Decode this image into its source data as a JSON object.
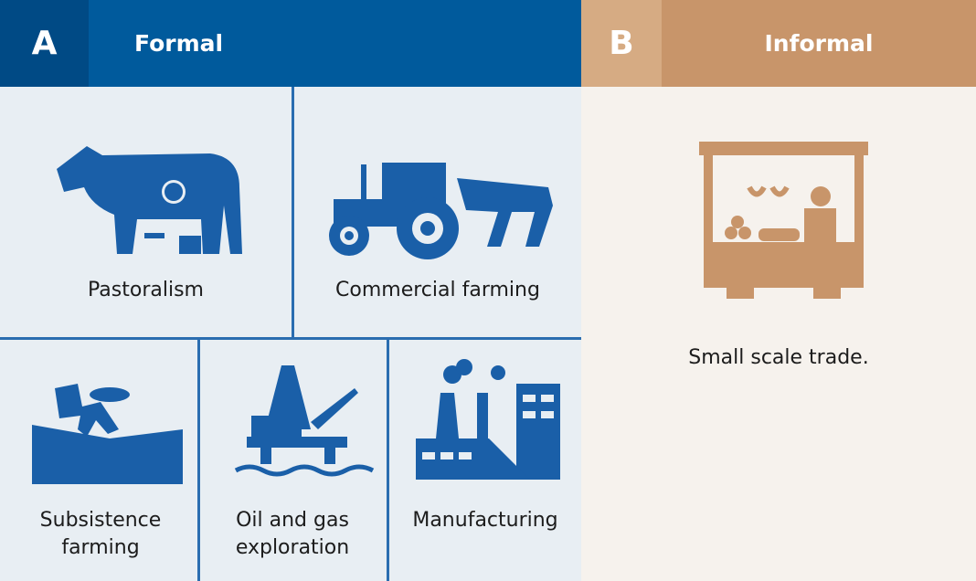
{
  "formal": {
    "letter": "A",
    "title": "Formal",
    "items": [
      "Pastoralism",
      "Commercial farming",
      "Subsistence farming",
      "Oil and gas exploration",
      "Manufacturing"
    ]
  },
  "informal": {
    "letter": "B",
    "title": "Informal",
    "items": [
      "Small scale trade."
    ]
  }
}
